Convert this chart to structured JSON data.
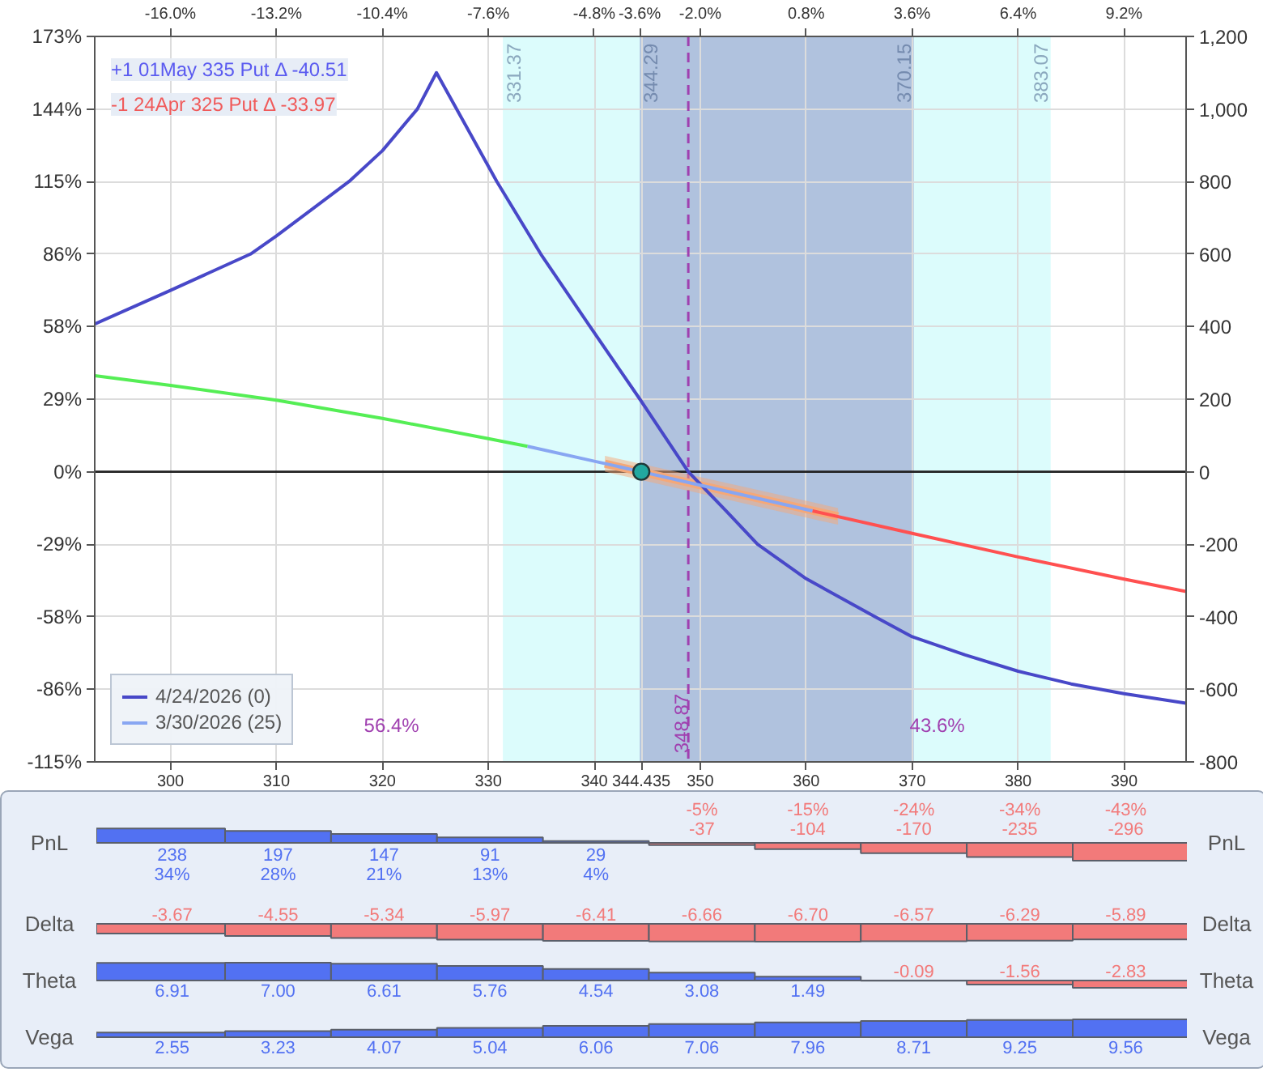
{
  "chart_data": [
    {
      "type": "line",
      "xlim": [
        292.85,
        395.85
      ],
      "xticks": [
        300,
        310,
        320,
        330,
        340,
        {
          "value": 344.435,
          "label": "344.435"
        },
        350,
        360,
        370,
        380,
        390
      ],
      "x2lim": [
        -18.0,
        10.84
      ],
      "x2ticks": [
        {
          "value": -16.0,
          "label": "-16.0%"
        },
        {
          "value": -13.2,
          "label": "-13.2%"
        },
        {
          "value": -10.4,
          "label": "-10.4%"
        },
        {
          "value": -7.6,
          "label": "-7.6%"
        },
        {
          "value": -4.8,
          "label": "-4.8%"
        },
        {
          "value": -3.6,
          "label": "-3.6%"
        },
        {
          "value": -2.0,
          "label": "-2.0%"
        },
        {
          "value": 0.8,
          "label": "0.8%"
        },
        {
          "value": 3.6,
          "label": "3.6%"
        },
        {
          "value": 6.4,
          "label": "6.4%"
        },
        {
          "value": 9.2,
          "label": "9.2%"
        }
      ],
      "ylim": [
        -115.2,
        172.8
      ],
      "yticks": [
        {
          "value": -115.2,
          "label": "-115%"
        },
        {
          "value": -86.4,
          "label": "-86%"
        },
        {
          "value": -57.6,
          "label": "-58%"
        },
        {
          "value": -28.8,
          "label": "-29%"
        },
        {
          "value": 0,
          "label": "0%"
        },
        {
          "value": 28.8,
          "label": "29%"
        },
        {
          "value": 57.6,
          "label": "58%"
        },
        {
          "value": 86.4,
          "label": "86%"
        },
        {
          "value": 115.2,
          "label": "115%"
        },
        {
          "value": 144.0,
          "label": "144%"
        },
        {
          "value": 172.8,
          "label": "173%"
        }
      ],
      "y2lim": [
        -800,
        1200
      ],
      "y2ticks": [
        -800,
        -600,
        -400,
        -200,
        0,
        200,
        400,
        600,
        800,
        {
          "value": 1000,
          "label": "1,000"
        },
        {
          "value": 1200,
          "label": "1,200"
        }
      ],
      "grid": true,
      "legend": "bottom left",
      "series": [
        {
          "type": "line",
          "axis": "y2",
          "color": "#f5a878",
          "x": [
            341,
            363
          ],
          "values": [
            22,
            -123
          ],
          "lower": [
            0,
            -146
          ],
          "upper": [
            44,
            -100
          ]
        },
        {
          "name": "4/24/2026 (0)",
          "type": "line",
          "axis": "y2",
          "color": "#4848c8",
          "x": [
            292.85,
            300,
            307.55,
            310,
            316.85,
            320,
            323.3,
            325.1,
            330.8,
            334.95,
            339.6,
            344.3,
            348.87,
            352.5,
            355.4,
            360,
            366.5,
            370,
            375,
            380,
            385,
            390,
            395.85
          ],
          "values": [
            407,
            500,
            600,
            650,
            800,
            885,
            1000,
            1100,
            800,
            600,
            400,
            200,
            0,
            -110,
            -200,
            -295,
            -400,
            -455,
            -505,
            -550,
            -585,
            -612,
            -638
          ]
        },
        {
          "type": "line",
          "axis": "y2",
          "color": "#55ee55",
          "x": [
            292.85,
            300,
            310,
            320,
            330,
            333.7
          ],
          "values": [
            265,
            238,
            197,
            147,
            91,
            70
          ]
        },
        {
          "name": "3/30/2026 (25)",
          "type": "line",
          "axis": "y2",
          "color": "#88a6f2",
          "x": [
            333.7,
            340,
            344.435,
            350,
            360,
            360.6
          ],
          "values": [
            70,
            29,
            0,
            -37,
            -104,
            -108
          ]
        },
        {
          "type": "line",
          "axis": "y2",
          "color": "#ff5050",
          "x": [
            360.6,
            370,
            380,
            390,
            395.85
          ],
          "values": [
            -108,
            -170,
            -235,
            -296,
            -330
          ]
        },
        {
          "type": "scatter",
          "axis": "y2",
          "color": "#22a8a0",
          "marker": "circle",
          "x": [
            344.435
          ],
          "values": [
            0
          ]
        }
      ],
      "bands": [
        {
          "axis": "x",
          "from": 331.37,
          "to": 383.07,
          "color": "#dcfcfc"
        },
        {
          "axis": "x",
          "from": 344.29,
          "to": 370.15,
          "color": "#b0c2de"
        }
      ],
      "ref_lines": [
        {
          "axis": "x",
          "value": 348.87,
          "label": "348.87",
          "color": "#a040b0",
          "line_style": "dashed"
        },
        {
          "axis": "y",
          "value": 0,
          "color": "#222222"
        }
      ],
      "annotations": [
        "+1 01May 335 Put Δ -40.51",
        "-1 24Apr 325 Put Δ -33.97",
        {
          "text": "331.37",
          "x": 331.37,
          "y": 170
        },
        {
          "text": "344.29",
          "x": 344.29,
          "y": 170
        },
        {
          "text": "370.15",
          "x": 370.15,
          "y": 170
        },
        {
          "text": "383.07",
          "x": 383.07,
          "y": 170
        },
        "56.4%",
        "43.6%"
      ]
    },
    {
      "type": "bar",
      "x": [
        300,
        310,
        320,
        330,
        340,
        350,
        360,
        370,
        380,
        390
      ],
      "values": [
        238,
        197,
        147,
        91,
        29,
        -37,
        -104,
        -170,
        -235,
        -296
      ],
      "colors": [
        "#5271f2",
        "#5271f2",
        "#5271f2",
        "#5271f2",
        "#5271f2",
        "#f27a7a",
        "#f27a7a",
        "#f27a7a",
        "#f27a7a",
        "#f27a7a"
      ],
      "value_labels": [
        "238\n34%",
        "197\n28%",
        "147\n21%",
        "91\n13%",
        "29\n4%",
        "-5%\n-37",
        "-15%\n-104",
        "-24%\n-170",
        "-34%\n-235",
        "-43%\n-296"
      ],
      "ylabel": "PnL",
      "y2label": "PnL",
      "xlim": [
        292.85,
        395.85
      ],
      "tick_labels": false
    },
    {
      "type": "bar",
      "x": [
        300,
        310,
        320,
        330,
        340,
        350,
        360,
        370,
        380,
        390
      ],
      "values": [
        -3.67,
        -4.55,
        -5.34,
        -5.97,
        -6.41,
        -6.66,
        -6.7,
        -6.57,
        -6.29,
        -5.89
      ],
      "colors": [
        "#f27a7a",
        "#f27a7a",
        "#f27a7a",
        "#f27a7a",
        "#f27a7a",
        "#f27a7a",
        "#f27a7a",
        "#f27a7a",
        "#f27a7a",
        "#f27a7a"
      ],
      "value_labels": [
        "-3.67",
        "-4.55",
        "-5.34",
        "-5.97",
        "-6.41",
        "-6.66",
        "-6.70",
        "-6.57",
        "-6.29",
        "-5.89"
      ],
      "ylabel": "Delta",
      "y2label": "Delta",
      "xlim": [
        292.85,
        395.85
      ],
      "tick_labels": false
    },
    {
      "type": "bar",
      "x": [
        300,
        310,
        320,
        330,
        340,
        350,
        360,
        370,
        380,
        390
      ],
      "values": [
        6.91,
        7.0,
        6.61,
        5.76,
        4.54,
        3.08,
        1.49,
        -0.09,
        -1.56,
        -2.83
      ],
      "colors": [
        "#5271f2",
        "#5271f2",
        "#5271f2",
        "#5271f2",
        "#5271f2",
        "#5271f2",
        "#5271f2",
        "#f27a7a",
        "#f27a7a",
        "#f27a7a"
      ],
      "value_labels": [
        "6.91",
        "7.00",
        "6.61",
        "5.76",
        "4.54",
        "3.08",
        "1.49",
        "-0.09",
        "-1.56",
        "-2.83"
      ],
      "ylabel": "Theta",
      "y2label": "Theta",
      "xlim": [
        292.85,
        395.85
      ],
      "tick_labels": false
    },
    {
      "type": "bar",
      "x": [
        300,
        310,
        320,
        330,
        340,
        350,
        360,
        370,
        380,
        390
      ],
      "values": [
        2.55,
        3.23,
        4.07,
        5.04,
        6.06,
        7.06,
        7.96,
        8.71,
        9.25,
        9.56
      ],
      "colors": [
        "#5271f2",
        "#5271f2",
        "#5271f2",
        "#5271f2",
        "#5271f2",
        "#5271f2",
        "#5271f2",
        "#5271f2",
        "#5271f2",
        "#5271f2"
      ],
      "value_labels": [
        "2.55",
        "3.23",
        "4.07",
        "5.04",
        "6.06",
        "7.06",
        "7.96",
        "8.71",
        "9.25",
        "9.56"
      ],
      "ylabel": "Vega",
      "y2label": "Vega",
      "xlim": [
        292.85,
        395.85
      ],
      "tick_labels": false
    }
  ]
}
